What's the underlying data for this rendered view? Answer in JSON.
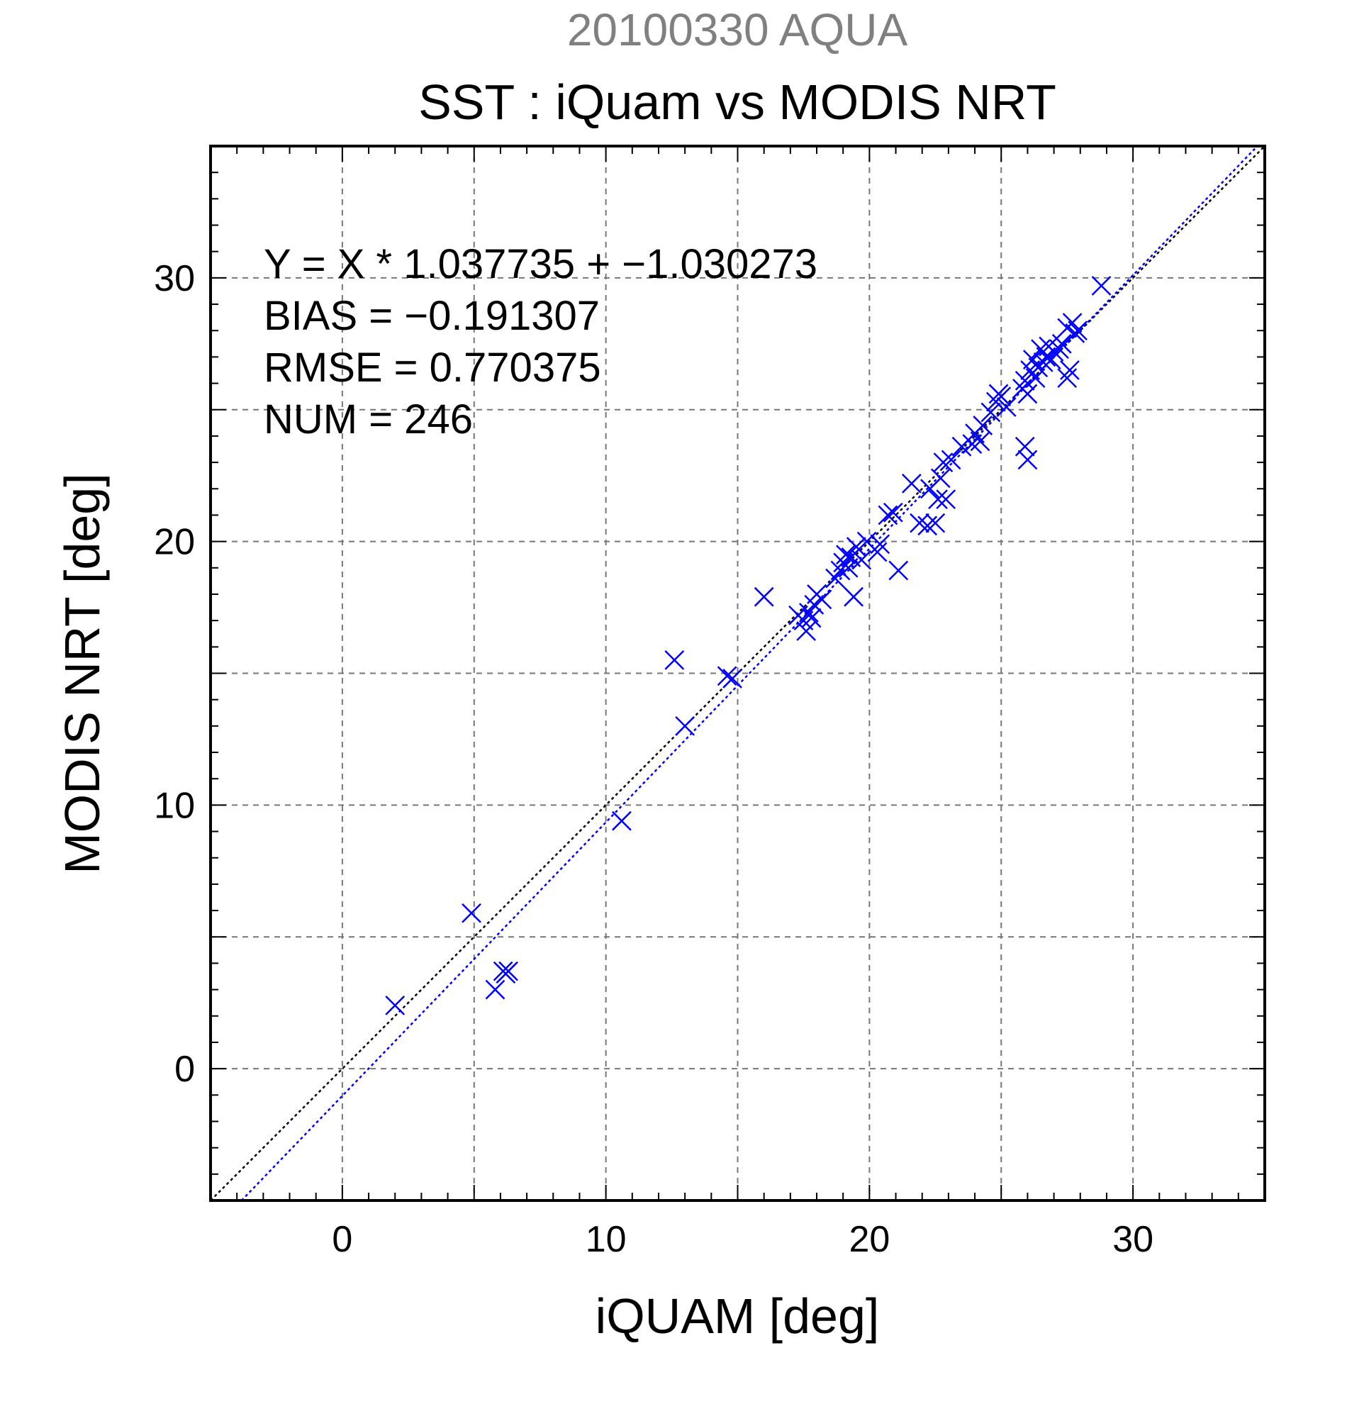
{
  "chart_data": {
    "type": "scatter",
    "supertitle": "20100330 AQUA",
    "title": "SST : iQuam vs MODIS NRT",
    "xlabel": "iQUAM [deg]",
    "ylabel": "MODIS NRT [deg]",
    "xlim": [
      -5,
      35
    ],
    "ylim": [
      -5,
      35
    ],
    "xticks": [
      0,
      10,
      20,
      30
    ],
    "yticks": [
      0,
      10,
      20,
      30
    ],
    "xtick_labels": [
      "0",
      "10",
      "20",
      "30"
    ],
    "ytick_labels": [
      "0",
      "10",
      "20",
      "30"
    ],
    "grid": true,
    "annotations": [
      "Y = X * 1.037735 + −1.030273",
      "BIAS = −0.191307",
      "RMSE = 0.770375",
      "NUM = 246"
    ],
    "reference_lines": [
      {
        "slope": 1.0,
        "intercept": 0.0,
        "color": "#000000",
        "style": "dotted"
      },
      {
        "slope": 1.037735,
        "intercept": -1.030273,
        "color": "#0000ff",
        "style": "dotted"
      }
    ],
    "marker_color": "#0000ff",
    "marker": "x",
    "points": [
      [
        2.0,
        2.4
      ],
      [
        4.9,
        5.9
      ],
      [
        5.8,
        3.0
      ],
      [
        6.1,
        3.7
      ],
      [
        6.2,
        3.6
      ],
      [
        6.3,
        3.7
      ],
      [
        10.6,
        9.4
      ],
      [
        12.6,
        15.5
      ],
      [
        13.0,
        13.0
      ],
      [
        14.6,
        14.9
      ],
      [
        14.8,
        14.8
      ],
      [
        16.0,
        17.9
      ],
      [
        17.3,
        17.2
      ],
      [
        17.5,
        17.0
      ],
      [
        17.6,
        16.6
      ],
      [
        17.7,
        17.3
      ],
      [
        17.8,
        17.1
      ],
      [
        17.9,
        17.6
      ],
      [
        18.0,
        18.0
      ],
      [
        18.2,
        17.8
      ],
      [
        18.7,
        18.6
      ],
      [
        18.9,
        18.9
      ],
      [
        19.0,
        19.2
      ],
      [
        19.1,
        19.5
      ],
      [
        19.2,
        19.0
      ],
      [
        19.3,
        19.4
      ],
      [
        19.4,
        17.9
      ],
      [
        19.5,
        19.8
      ],
      [
        19.7,
        19.3
      ],
      [
        19.9,
        20.0
      ],
      [
        20.3,
        19.6
      ],
      [
        20.4,
        19.9
      ],
      [
        20.7,
        21.0
      ],
      [
        20.9,
        21.1
      ],
      [
        21.1,
        18.9
      ],
      [
        21.6,
        22.2
      ],
      [
        21.9,
        20.7
      ],
      [
        22.2,
        20.6
      ],
      [
        22.3,
        22.0
      ],
      [
        22.5,
        20.7
      ],
      [
        22.6,
        21.6
      ],
      [
        22.7,
        22.4
      ],
      [
        22.9,
        21.6
      ],
      [
        22.8,
        23.0
      ],
      [
        23.1,
        23.1
      ],
      [
        23.5,
        23.6
      ],
      [
        23.9,
        23.7
      ],
      [
        24.0,
        24.1
      ],
      [
        24.2,
        23.8
      ],
      [
        24.3,
        24.4
      ],
      [
        24.6,
        24.9
      ],
      [
        24.8,
        25.3
      ],
      [
        24.9,
        25.6
      ],
      [
        25.0,
        25.5
      ],
      [
        25.2,
        25.1
      ],
      [
        25.8,
        25.8
      ],
      [
        25.9,
        26.1
      ],
      [
        25.9,
        23.6
      ],
      [
        26.0,
        23.1
      ],
      [
        26.0,
        25.6
      ],
      [
        26.1,
        26.5
      ],
      [
        26.2,
        26.9
      ],
      [
        26.3,
        26.2
      ],
      [
        26.4,
        26.6
      ],
      [
        26.5,
        27.3
      ],
      [
        26.6,
        26.8
      ],
      [
        26.7,
        27.0
      ],
      [
        26.8,
        27.4
      ],
      [
        26.9,
        26.9
      ],
      [
        27.0,
        27.2
      ],
      [
        27.2,
        27.3
      ],
      [
        27.3,
        27.5
      ],
      [
        27.5,
        26.2
      ],
      [
        27.5,
        28.1
      ],
      [
        27.6,
        26.5
      ],
      [
        27.7,
        28.3
      ],
      [
        27.8,
        27.9
      ],
      [
        27.9,
        28.0
      ],
      [
        28.8,
        29.7
      ]
    ]
  }
}
